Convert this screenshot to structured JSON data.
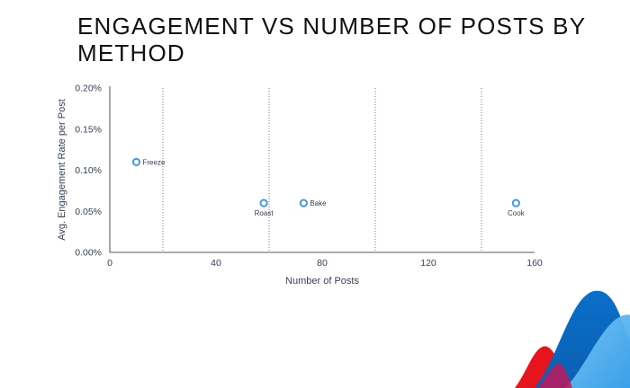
{
  "title": "ENGAGEMENT VS NUMBER OF POSTS BY METHOD",
  "chart_data": {
    "type": "scatter",
    "title": "ENGAGEMENT VS NUMBER OF POSTS BY METHOD",
    "xlabel": "Number of Posts",
    "ylabel": "Avg. Engagement Rate per Post",
    "xlim": [
      0,
      160
    ],
    "ylim": [
      0,
      0.2
    ],
    "x_ticks": [
      "0",
      "40",
      "80",
      "120",
      "160"
    ],
    "y_ticks": [
      "0.00%",
      "0.05%",
      "0.10%",
      "0.15%",
      "0.20%"
    ],
    "vertical_gridlines_at": [
      20,
      60,
      100,
      140
    ],
    "grid": "vertical dotted",
    "points": [
      {
        "label": "Freeze",
        "x": 10,
        "y": 0.11,
        "label_position": "right"
      },
      {
        "label": "Roast",
        "x": 58,
        "y": 0.06,
        "label_position": "below"
      },
      {
        "label": "Bake",
        "x": 73,
        "y": 0.06,
        "label_position": "right"
      },
      {
        "label": "Cook",
        "x": 153,
        "y": 0.06,
        "label_position": "below"
      }
    ],
    "colors": {
      "marker": "#3d9be9",
      "axis_text": "#333f5a",
      "axis": "#222222"
    }
  }
}
